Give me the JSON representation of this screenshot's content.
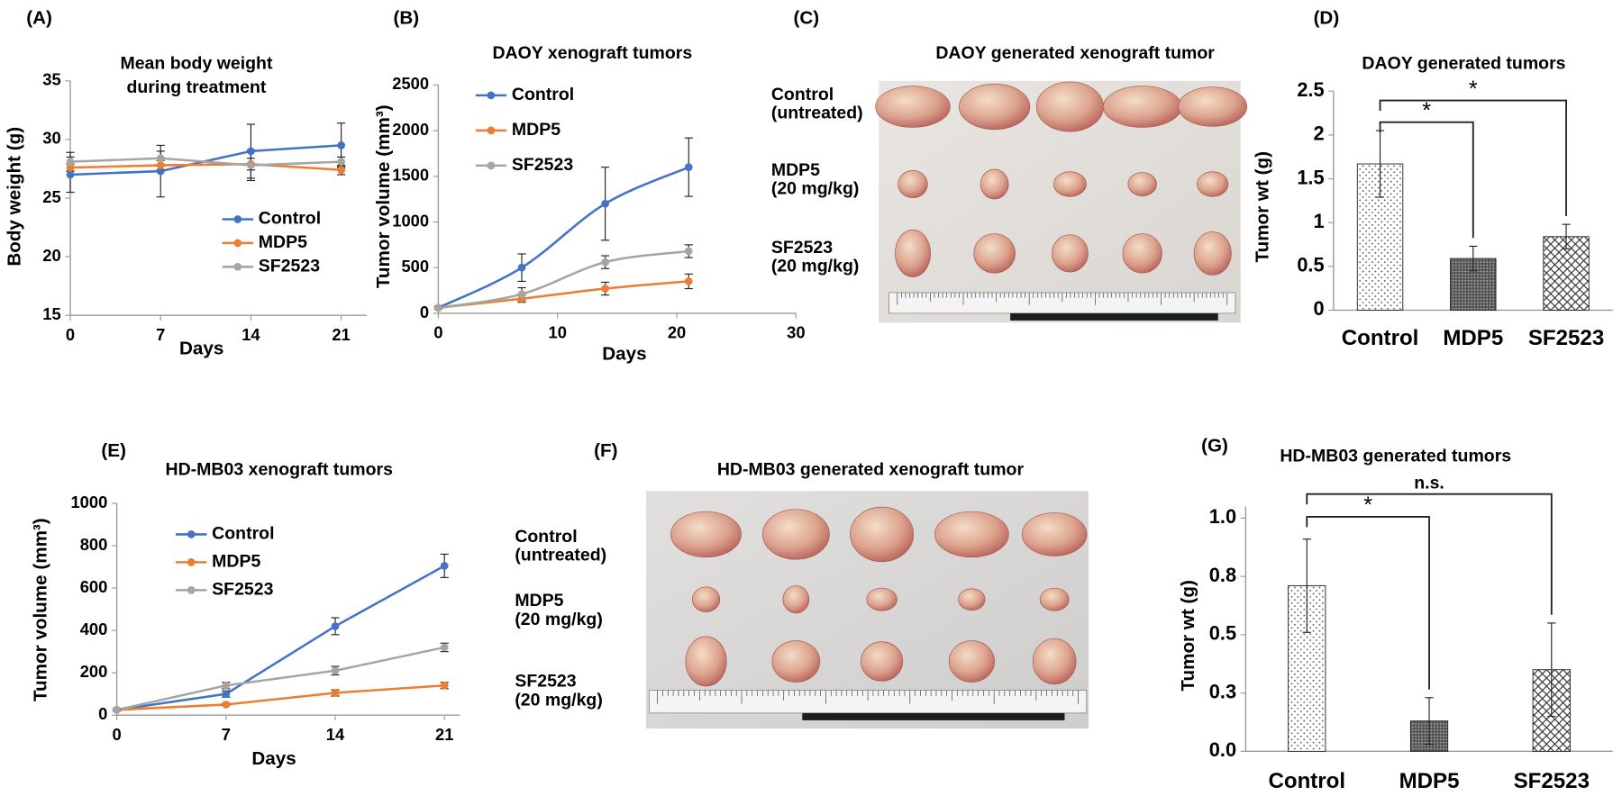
{
  "chart_data": [
    {
      "type": "line",
      "panel_label": "(A)",
      "title": [
        "Mean body weight",
        "during treatment"
      ],
      "x_label": "Days",
      "y_label": "Body weight (g)",
      "x": [
        0,
        7,
        14,
        21
      ],
      "xlim": [
        0,
        23
      ],
      "xticks": [
        0,
        7,
        14,
        21
      ],
      "ylim": [
        15,
        35
      ],
      "yticks": [
        15,
        20,
        25,
        30,
        35
      ],
      "legend": "lower right",
      "smooth": false,
      "series": [
        {
          "name": "Control",
          "color": "#4472c4",
          "values": [
            27,
            27.3,
            29,
            29.5
          ],
          "errors": [
            1.5,
            2.2,
            2.3,
            1.9
          ]
        },
        {
          "name": "MDP5",
          "color": "#ed7d31",
          "values": [
            27.6,
            27.8,
            27.9,
            27.4
          ],
          "errors": [
            0.3,
            0.4,
            0.5,
            0.4
          ]
        },
        {
          "name": "SF2523",
          "color": "#a5a5a5",
          "values": [
            28.1,
            28.4,
            27.8,
            28.1
          ],
          "errors": [
            0.8,
            0.6,
            1.3,
            0.4
          ]
        }
      ]
    },
    {
      "type": "line",
      "panel_label": "(B)",
      "title": [
        "DAOY xenograft tumors"
      ],
      "x_label": "Days",
      "y_label": "Tumor volume  (mm³)",
      "x": [
        0,
        7,
        14,
        21
      ],
      "xlim": [
        0,
        30
      ],
      "xticks": [
        0,
        10,
        20,
        30
      ],
      "ylim": [
        0,
        2500
      ],
      "yticks": [
        0,
        500,
        1000,
        1500,
        2000,
        2500
      ],
      "legend": "upper left",
      "smooth": true,
      "series": [
        {
          "name": "Control",
          "color": "#4472c4",
          "values": [
            60,
            500,
            1200,
            1600
          ],
          "errors": [
            15,
            150,
            400,
            320
          ]
        },
        {
          "name": "MDP5",
          "color": "#ed7d31",
          "values": [
            60,
            160,
            270,
            350
          ],
          "errors": [
            15,
            40,
            70,
            80
          ]
        },
        {
          "name": "SF2523",
          "color": "#a5a5a5",
          "values": [
            60,
            210,
            560,
            680
          ],
          "errors": [
            15,
            70,
            70,
            70
          ]
        }
      ]
    },
    {
      "type": "bar",
      "panel_label": "(D)",
      "title": [
        "DAOY generated tumors"
      ],
      "y_label": "Tumor wt (g)",
      "categories": [
        "Control",
        "MDP5",
        "SF2523"
      ],
      "values": [
        1.67,
        0.59,
        0.84
      ],
      "errors": [
        0.38,
        0.14,
        0.14
      ],
      "significance": [
        null,
        "*",
        "*"
      ],
      "ylim": [
        0,
        2.5
      ],
      "yticks": [
        0,
        0.5,
        1,
        1.5,
        2,
        2.5
      ]
    },
    {
      "type": "line",
      "panel_label": "(E)",
      "title": [
        "HD-MB03 xenograft tumors"
      ],
      "x_label": "Days",
      "y_label": "Tumor volume  (mm³)",
      "x": [
        0,
        7,
        14,
        21
      ],
      "xlim": [
        0,
        22
      ],
      "xticks": [
        0,
        7,
        14,
        21
      ],
      "ylim": [
        0,
        1000
      ],
      "yticks": [
        0,
        200,
        400,
        600,
        800,
        1000
      ],
      "legend": "upper left",
      "smooth": false,
      "series": [
        {
          "name": "Control",
          "color": "#4472c4",
          "values": [
            25,
            100,
            420,
            705
          ],
          "errors": [
            5,
            15,
            40,
            55
          ]
        },
        {
          "name": "MDP5",
          "color": "#ed7d31",
          "values": [
            25,
            50,
            105,
            140
          ],
          "errors": [
            5,
            5,
            15,
            15
          ]
        },
        {
          "name": "SF2523",
          "color": "#a5a5a5",
          "values": [
            25,
            140,
            210,
            320
          ],
          "errors": [
            5,
            15,
            20,
            20
          ]
        }
      ]
    },
    {
      "type": "bar",
      "panel_label": "(G)",
      "title": [
        "HD-MB03 generated tumors"
      ],
      "y_label": "Tumor wt (g)",
      "categories": [
        "Control",
        "MDP5",
        "SF2523"
      ],
      "values": [
        0.71,
        0.13,
        0.35
      ],
      "errors": [
        0.2,
        0.1,
        0.2
      ],
      "significance": [
        null,
        "*",
        "n.s."
      ],
      "ylim": [
        0,
        1.05
      ],
      "yticks": [
        {
          "value": 0,
          "label": "0.0"
        },
        {
          "value": 0.25,
          "label": "0.3"
        },
        {
          "value": 0.5,
          "label": "0.5"
        },
        {
          "value": 0.75,
          "label": "0.8"
        },
        {
          "value": 1,
          "label": "1.0"
        }
      ]
    }
  ],
  "photos": [
    {
      "panel_label": "(C)",
      "title": "DAOY generated xenograft tumor",
      "rows": [
        [
          "Control",
          "(untreated)"
        ],
        [
          "MDP5",
          "(20 mg/kg)"
        ],
        [
          "SF2523",
          "(20 mg/kg)"
        ]
      ]
    },
    {
      "panel_label": "(F)",
      "title": "HD-MB03 generated xenograft tumor",
      "rows": [
        [
          "Control",
          "(untreated)"
        ],
        [
          "MDP5",
          "(20 mg/kg)"
        ],
        [
          "SF2523",
          "(20 mg/kg)"
        ]
      ]
    }
  ]
}
